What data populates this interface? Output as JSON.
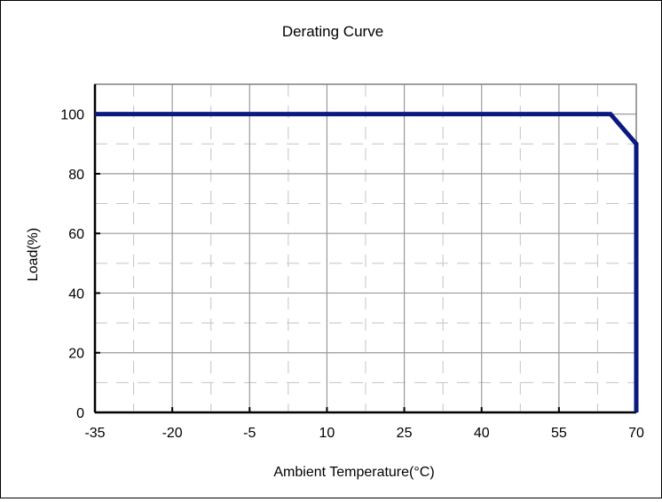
{
  "chart_data": {
    "type": "line",
    "title": "Derating Curve",
    "xlabel": "Ambient Temperature(°C)",
    "ylabel": "Load(%)",
    "xlim": [
      -35,
      70
    ],
    "ylim": [
      0,
      110
    ],
    "x_ticks": [
      -35,
      -20,
      -5,
      10,
      25,
      40,
      55,
      70
    ],
    "y_ticks": [
      0,
      20,
      40,
      60,
      80,
      100
    ],
    "grid": true,
    "series": [
      {
        "color": "#0b1a80",
        "points": [
          {
            "x": -35,
            "y": 100
          },
          {
            "x": 65,
            "y": 100
          },
          {
            "x": 70,
            "y": 90
          },
          {
            "x": 70,
            "y": 0
          }
        ]
      }
    ]
  }
}
